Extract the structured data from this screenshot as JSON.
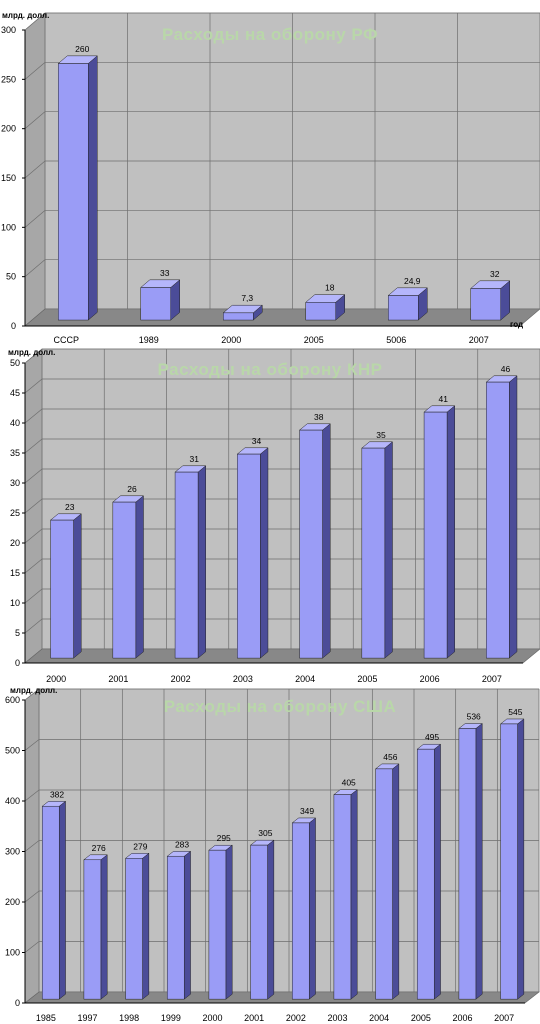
{
  "colors": {
    "bar_front": "#9a9cf6",
    "bar_top": "#b5b6fb",
    "bar_side": "#4b4c98",
    "wall": "#c0c0c0",
    "floor": "#888888",
    "grid": "#6e6e6e",
    "title": "#b9d7a9"
  },
  "chart_data": [
    {
      "type": "bar",
      "title": "Расходы на оборону РФ",
      "ylabel": "млрд. долл.",
      "xlabel": "год",
      "categories": [
        "СССР",
        "1989",
        "2000",
        "2005",
        "5006",
        "2007"
      ],
      "values": [
        260,
        33,
        7.3,
        18,
        24.9,
        32
      ],
      "value_labels": [
        "260",
        "33",
        "7,3",
        "18",
        "24,9",
        "32"
      ],
      "ylim": [
        0,
        300
      ],
      "yticks": [
        0,
        50,
        100,
        150,
        200,
        250,
        300
      ],
      "grid": true,
      "three_d": true
    },
    {
      "type": "bar",
      "title": "Расходы на оборону КНР",
      "ylabel": "млрд. долл.",
      "xlabel": "",
      "categories": [
        "2000",
        "2001",
        "2002",
        "2003",
        "2004",
        "2005",
        "2006",
        "2007"
      ],
      "values": [
        23,
        26,
        31,
        34,
        38,
        35,
        41,
        46
      ],
      "value_labels": [
        "23",
        "26",
        "31",
        "34",
        "38",
        "35",
        "41",
        "46"
      ],
      "ylim": [
        0,
        50
      ],
      "yticks": [
        0,
        5,
        10,
        15,
        20,
        25,
        30,
        35,
        40,
        45,
        50
      ],
      "grid": true,
      "three_d": true
    },
    {
      "type": "bar",
      "title": "Расходы на оборону США",
      "ylabel": "млрд. долл.",
      "xlabel": "",
      "categories": [
        "1985",
        "1997",
        "1998",
        "1999",
        "2000",
        "2001",
        "2002",
        "2003",
        "2004",
        "2005",
        "2006",
        "2007"
      ],
      "values": [
        382,
        276,
        279,
        283,
        295,
        305,
        349,
        405,
        456,
        495,
        536,
        545
      ],
      "value_labels": [
        "382",
        "276",
        "279",
        "283",
        "295",
        "305",
        "349",
        "405",
        "456",
        "495",
        "536",
        "545"
      ],
      "ylim": [
        0,
        600
      ],
      "yticks": [
        0,
        100,
        200,
        300,
        400,
        500,
        600
      ],
      "grid": true,
      "three_d": true
    }
  ]
}
